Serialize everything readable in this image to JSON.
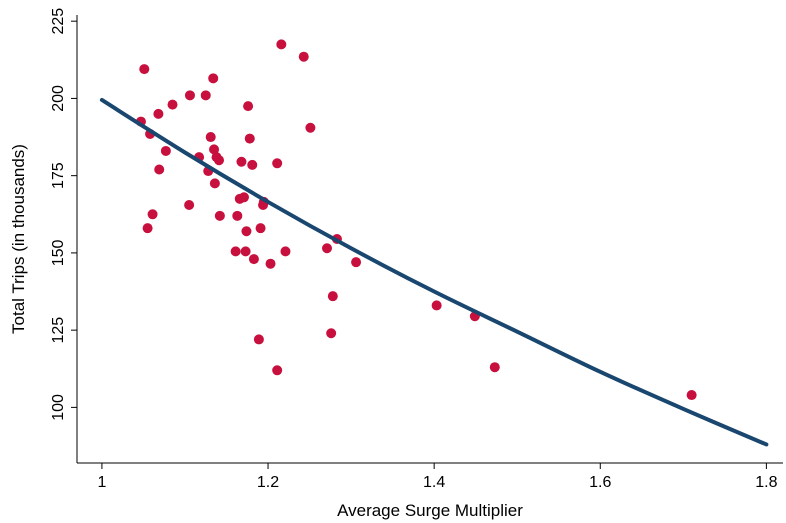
{
  "chart_data": {
    "type": "scatter",
    "xlabel": "Average Surge Multiplier",
    "ylabel": "Total Trips (in thousands)",
    "xlim": [
      0.97,
      1.82
    ],
    "ylim": [
      82,
      227
    ],
    "xticks": [
      1,
      1.2,
      1.4,
      1.6,
      1.8
    ],
    "xtick_labels": [
      "1",
      "1.2",
      "1.4",
      "1.6",
      "1.8"
    ],
    "yticks": [
      100,
      125,
      150,
      175,
      200,
      225
    ],
    "ytick_labels": [
      "100",
      "125",
      "150",
      "175",
      "200",
      "225"
    ],
    "grid": false,
    "legend": "none",
    "colors": {
      "points": "#c8103e",
      "fit": "#1a476f"
    },
    "series": [
      {
        "kind": "points",
        "x": [
          1.051,
          1.047,
          1.058,
          1.068,
          1.085,
          1.106,
          1.125,
          1.134,
          1.131,
          1.135,
          1.138,
          1.141,
          1.117,
          1.128,
          1.136,
          1.077,
          1.069,
          1.061,
          1.055,
          1.105,
          1.142,
          1.163,
          1.166,
          1.171,
          1.174,
          1.176,
          1.178,
          1.181,
          1.168,
          1.191,
          1.195,
          1.194,
          1.161,
          1.173,
          1.183,
          1.203,
          1.211,
          1.216,
          1.221,
          1.243,
          1.251,
          1.271,
          1.283,
          1.306,
          1.278,
          1.276,
          1.189,
          1.211,
          1.403,
          1.449,
          1.473,
          1.71
        ],
        "y": [
          209.5,
          192.5,
          188.5,
          195,
          198,
          201,
          201,
          206.5,
          187.5,
          183.5,
          181,
          180,
          181,
          176.5,
          172.5,
          183,
          177,
          162.5,
          158,
          165.5,
          162,
          162,
          167.5,
          168,
          157,
          197.5,
          187,
          178.5,
          179.5,
          158,
          166.5,
          165.5,
          150.5,
          150.5,
          148,
          146.5,
          179,
          217.5,
          150.5,
          213.5,
          190.5,
          151.5,
          154.5,
          147,
          136,
          124,
          122,
          112,
          133,
          129.5,
          113,
          104
        ]
      },
      {
        "kind": "fit",
        "x": [
          1.0,
          1.1,
          1.2,
          1.3,
          1.4,
          1.5,
          1.6,
          1.7,
          1.8
        ],
        "y": [
          199.5,
          182.5,
          166.5,
          151.5,
          137.5,
          124.5,
          111.5,
          99.5,
          88
        ]
      }
    ]
  }
}
